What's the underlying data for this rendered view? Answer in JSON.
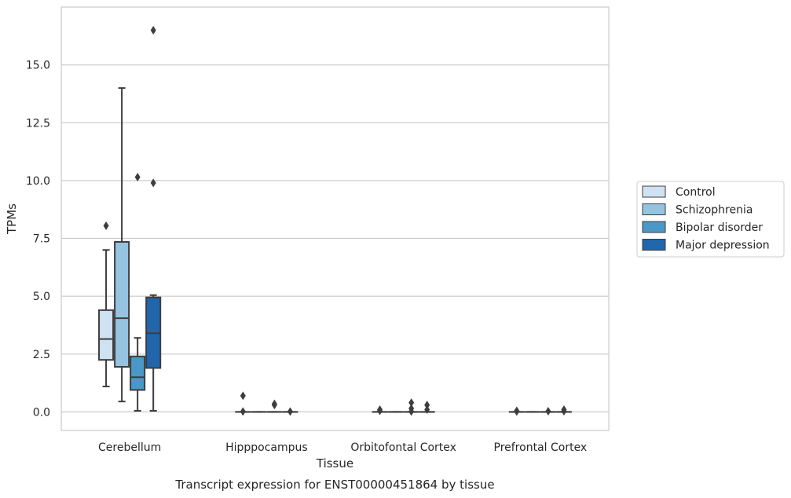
{
  "chart_data": {
    "type": "box",
    "xlabel": "Tissue",
    "ylabel": "TPMs",
    "caption": "Transcript expression for ENST00000451864 by tissue",
    "categories": [
      "Cerebellum",
      "Hipppocampus",
      "Orbitofontal Cortex",
      "Prefrontal Cortex"
    ],
    "ylim": [
      -0.8,
      17.5
    ],
    "yticks": [
      0.0,
      2.5,
      5.0,
      7.5,
      10.0,
      12.5,
      15.0
    ],
    "ytick_labels": [
      "0.0",
      "2.5",
      "5.0",
      "7.5",
      "10.0",
      "12.5",
      "15.0"
    ],
    "grid": "horizontal",
    "legend_position": "right",
    "series": [
      {
        "name": "Control",
        "color": "#d0e1f2",
        "boxes": [
          {
            "min": 1.1,
            "q1": 2.25,
            "median": 3.15,
            "q3": 4.4,
            "max": 7.0,
            "outliers": [
              8.05
            ]
          },
          {
            "min": 0.0,
            "q1": 0.0,
            "median": 0.0,
            "q3": 0.0,
            "max": 0.0,
            "outliers": [
              0.7,
              0.02
            ]
          },
          {
            "min": 0.0,
            "q1": 0.0,
            "median": 0.0,
            "q3": 0.0,
            "max": 0.0,
            "outliers": [
              0.1,
              0.05
            ]
          },
          {
            "min": 0.0,
            "q1": 0.0,
            "median": 0.0,
            "q3": 0.0,
            "max": 0.0,
            "outliers": [
              0.05,
              0.02
            ]
          }
        ]
      },
      {
        "name": "Schizophrenia",
        "color": "#94c4df",
        "boxes": [
          {
            "min": 0.45,
            "q1": 1.95,
            "median": 4.05,
            "q3": 7.35,
            "max": 14.0,
            "outliers": []
          },
          {
            "min": 0.0,
            "q1": 0.0,
            "median": 0.0,
            "q3": 0.0,
            "max": 0.0,
            "outliers": []
          },
          {
            "min": 0.0,
            "q1": 0.0,
            "median": 0.0,
            "q3": 0.0,
            "max": 0.0,
            "outliers": []
          },
          {
            "min": 0.0,
            "q1": 0.0,
            "median": 0.0,
            "q3": 0.0,
            "max": 0.0,
            "outliers": []
          }
        ]
      },
      {
        "name": "Bipolar disorder",
        "color": "#4a98c9",
        "boxes": [
          {
            "min": 0.05,
            "q1": 0.95,
            "median": 1.5,
            "q3": 2.4,
            "max": 3.2,
            "outliers": [
              10.15
            ]
          },
          {
            "min": 0.0,
            "q1": 0.0,
            "median": 0.0,
            "q3": 0.0,
            "max": 0.0,
            "outliers": [
              0.35,
              0.3
            ]
          },
          {
            "min": 0.0,
            "q1": 0.0,
            "median": 0.0,
            "q3": 0.0,
            "max": 0.0,
            "outliers": [
              0.4,
              0.15,
              0.02
            ]
          },
          {
            "min": 0.0,
            "q1": 0.0,
            "median": 0.0,
            "q3": 0.0,
            "max": 0.0,
            "outliers": [
              0.03
            ]
          }
        ]
      },
      {
        "name": "Major depression",
        "color": "#2166ac",
        "boxes": [
          {
            "min": 0.05,
            "q1": 1.9,
            "median": 3.4,
            "q3": 4.95,
            "max": 5.05,
            "outliers": [
              16.5,
              9.9
            ]
          },
          {
            "min": 0.0,
            "q1": 0.0,
            "median": 0.0,
            "q3": 0.0,
            "max": 0.0,
            "outliers": [
              0.02
            ]
          },
          {
            "min": 0.0,
            "q1": 0.0,
            "median": 0.0,
            "q3": 0.0,
            "max": 0.0,
            "outliers": [
              0.3,
              0.1
            ]
          },
          {
            "min": 0.0,
            "q1": 0.0,
            "median": 0.0,
            "q3": 0.0,
            "max": 0.0,
            "outliers": [
              0.1,
              0.03
            ]
          }
        ]
      }
    ]
  }
}
